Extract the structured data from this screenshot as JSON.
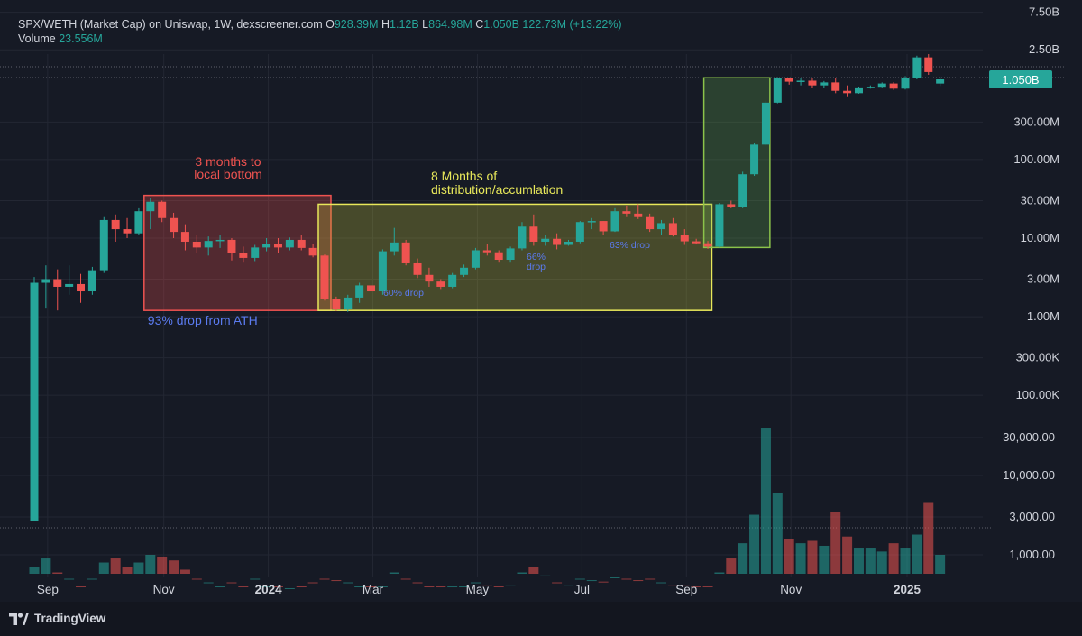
{
  "header": {
    "symbol": "SPX/WETH (Market Cap) on Uniswap, 1W, dexscreener.com",
    "o_label": "O",
    "o_value": "928.39M",
    "h_label": "H",
    "h_value": "1.12B",
    "l_label": "L",
    "l_value": "864.98M",
    "c_label": "C",
    "c_value": "1.050B",
    "change": "122.73M (+13.22%)",
    "volume_label": "Volume",
    "volume_value": "23.556M"
  },
  "footer": {
    "brand": "TradingView"
  },
  "price_badge": "1.050B",
  "colors": {
    "up": "#26a69a",
    "down": "#ef5350",
    "background": "#161a25",
    "grid": "#232733",
    "red_box": "#ef5350",
    "yellow_box": "#e8e85a",
    "green_box": "#8bc34a",
    "annotation_red": "#ef5350",
    "annotation_yellow": "#e8e85a",
    "annotation_blue": "#5b7bf0"
  },
  "chart_data": {
    "type": "candlestick",
    "title": "SPX/WETH (Market Cap) on Uniswap, 1W, dexscreener.com",
    "y_scale": "log",
    "price_axis_labels": [
      "7.50B",
      "2.50B",
      "1.050B",
      "300.00M",
      "100.00M",
      "30.00M",
      "10.00M",
      "3.00M",
      "1.00M",
      "300.00K",
      "100.00K"
    ],
    "volume_axis_labels": [
      "30,000.00",
      "10,000.00",
      "3,000.00",
      "1,000.00"
    ],
    "x_tick_labels": [
      "Sep",
      "Nov",
      "2024",
      "Mar",
      "May",
      "Jul",
      "Sep",
      "Nov",
      "2025"
    ],
    "candles": [
      {
        "o": 0.0025,
        "h": 3.2,
        "l": 0.0025,
        "c": 2.7,
        "v": 700
      },
      {
        "o": 2.7,
        "h": 4.5,
        "l": 1.3,
        "c": 3.0,
        "v": 900
      },
      {
        "o": 3.0,
        "h": 4.0,
        "l": 1.2,
        "c": 2.4,
        "v": 600
      },
      {
        "o": 2.4,
        "h": 4.5,
        "l": 1.9,
        "c": 2.6,
        "v": 500
      },
      {
        "o": 2.6,
        "h": 3.5,
        "l": 1.5,
        "c": 2.1,
        "v": 400
      },
      {
        "o": 2.1,
        "h": 4.3,
        "l": 1.9,
        "c": 3.9,
        "v": 500
      },
      {
        "o": 3.9,
        "h": 19,
        "l": 3.6,
        "c": 17,
        "v": 800
      },
      {
        "o": 17,
        "h": 20,
        "l": 9,
        "c": 13,
        "v": 900
      },
      {
        "o": 13,
        "h": 18,
        "l": 10,
        "c": 11.5,
        "v": 700
      },
      {
        "o": 11.5,
        "h": 24,
        "l": 11,
        "c": 22,
        "v": 800
      },
      {
        "o": 22,
        "h": 32,
        "l": 13,
        "c": 29,
        "v": 1000
      },
      {
        "o": 29,
        "h": 30,
        "l": 16,
        "c": 18,
        "v": 950
      },
      {
        "o": 18,
        "h": 21,
        "l": 10,
        "c": 12,
        "v": 850
      },
      {
        "o": 12,
        "h": 15,
        "l": 7,
        "c": 9,
        "v": 650
      },
      {
        "o": 9,
        "h": 11,
        "l": 6.5,
        "c": 7.6,
        "v": 500
      },
      {
        "o": 7.6,
        "h": 10.5,
        "l": 6,
        "c": 9.2,
        "v": 450
      },
      {
        "o": 9.2,
        "h": 11,
        "l": 7.5,
        "c": 9.5,
        "v": 400
      },
      {
        "o": 9.5,
        "h": 10,
        "l": 5.2,
        "c": 6.5,
        "v": 450
      },
      {
        "o": 6.5,
        "h": 7.8,
        "l": 5,
        "c": 5.6,
        "v": 400
      },
      {
        "o": 5.6,
        "h": 8.2,
        "l": 5.1,
        "c": 7.6,
        "v": 500
      },
      {
        "o": 7.6,
        "h": 10,
        "l": 6.8,
        "c": 8.4,
        "v": 400
      },
      {
        "o": 8.4,
        "h": 10,
        "l": 6.5,
        "c": 7.6,
        "v": 400
      },
      {
        "o": 7.6,
        "h": 10.2,
        "l": 7,
        "c": 9.5,
        "v": 380
      },
      {
        "o": 9.5,
        "h": 11,
        "l": 7,
        "c": 7.5,
        "v": 400
      },
      {
        "o": 7.5,
        "h": 8.5,
        "l": 5.7,
        "c": 6.0,
        "v": 450
      },
      {
        "o": 6.0,
        "h": 6.2,
        "l": 1.6,
        "c": 1.7,
        "v": 500
      },
      {
        "o": 1.7,
        "h": 1.8,
        "l": 1.18,
        "c": 1.25,
        "v": 480
      },
      {
        "o": 1.25,
        "h": 1.9,
        "l": 1.15,
        "c": 1.75,
        "v": 450
      },
      {
        "o": 1.75,
        "h": 2.7,
        "l": 1.5,
        "c": 2.5,
        "v": 400
      },
      {
        "o": 2.5,
        "h": 3.0,
        "l": 2.0,
        "c": 2.1,
        "v": 400
      },
      {
        "o": 2.1,
        "h": 7.2,
        "l": 1.9,
        "c": 6.8,
        "v": 400
      },
      {
        "o": 6.8,
        "h": 13.5,
        "l": 6,
        "c": 8.8,
        "v": 600
      },
      {
        "o": 8.8,
        "h": 9.5,
        "l": 4.5,
        "c": 4.9,
        "v": 500
      },
      {
        "o": 4.9,
        "h": 5.5,
        "l": 3.1,
        "c": 3.4,
        "v": 450
      },
      {
        "o": 3.4,
        "h": 4.2,
        "l": 2.4,
        "c": 2.8,
        "v": 400
      },
      {
        "o": 2.8,
        "h": 3.0,
        "l": 2.25,
        "c": 2.4,
        "v": 400
      },
      {
        "o": 2.4,
        "h": 3.6,
        "l": 2.3,
        "c": 3.4,
        "v": 400
      },
      {
        "o": 3.4,
        "h": 4.6,
        "l": 3.2,
        "c": 4.2,
        "v": 400
      },
      {
        "o": 4.2,
        "h": 7.5,
        "l": 4.0,
        "c": 7.0,
        "v": 450
      },
      {
        "o": 7.0,
        "h": 8.5,
        "l": 6.0,
        "c": 6.6,
        "v": 420
      },
      {
        "o": 6.6,
        "h": 7.0,
        "l": 5.0,
        "c": 5.3,
        "v": 400
      },
      {
        "o": 5.3,
        "h": 7.8,
        "l": 5.0,
        "c": 7.4,
        "v": 420
      },
      {
        "o": 7.4,
        "h": 16,
        "l": 7,
        "c": 14,
        "v": 600
      },
      {
        "o": 14,
        "h": 20,
        "l": 8,
        "c": 9,
        "v": 700
      },
      {
        "o": 9,
        "h": 11,
        "l": 8,
        "c": 9.8,
        "v": 550
      },
      {
        "o": 9.8,
        "h": 11.5,
        "l": 7.2,
        "c": 8.2,
        "v": 450
      },
      {
        "o": 8.2,
        "h": 9.5,
        "l": 8,
        "c": 9.0,
        "v": 420
      },
      {
        "o": 9.0,
        "h": 16.5,
        "l": 8.6,
        "c": 16,
        "v": 500
      },
      {
        "o": 16,
        "h": 18,
        "l": 13,
        "c": 16.5,
        "v": 480
      },
      {
        "o": 16.5,
        "h": 16.5,
        "l": 11,
        "c": 12.2,
        "v": 460
      },
      {
        "o": 12.2,
        "h": 24,
        "l": 12,
        "c": 22,
        "v": 520
      },
      {
        "o": 22,
        "h": 26,
        "l": 19,
        "c": 20.5,
        "v": 500
      },
      {
        "o": 20.5,
        "h": 27,
        "l": 17.5,
        "c": 19,
        "v": 480
      },
      {
        "o": 19,
        "h": 20.5,
        "l": 12,
        "c": 13,
        "v": 500
      },
      {
        "o": 13,
        "h": 17,
        "l": 11,
        "c": 15.5,
        "v": 450
      },
      {
        "o": 15.5,
        "h": 18,
        "l": 10.5,
        "c": 11,
        "v": 420
      },
      {
        "o": 11,
        "h": 13,
        "l": 8.2,
        "c": 9.1,
        "v": 420
      },
      {
        "o": 9.1,
        "h": 9.8,
        "l": 8.3,
        "c": 8.6,
        "v": 400
      },
      {
        "o": 8.6,
        "h": 9.2,
        "l": 7.3,
        "c": 7.8,
        "v": 400
      },
      {
        "o": 7.8,
        "h": 28,
        "l": 7.6,
        "c": 27,
        "v": 600
      },
      {
        "o": 27,
        "h": 30,
        "l": 24,
        "c": 25,
        "v": 900
      },
      {
        "o": 25,
        "h": 70,
        "l": 24,
        "c": 65,
        "v": 1400
      },
      {
        "o": 65,
        "h": 165,
        "l": 62,
        "c": 155,
        "v": 3200
      },
      {
        "o": 155,
        "h": 560,
        "l": 150,
        "c": 530,
        "v": 40000
      },
      {
        "o": 530,
        "h": 1120,
        "l": 520,
        "c": 1080,
        "v": 6000
      },
      {
        "o": 1080,
        "h": 1110,
        "l": 900,
        "c": 980,
        "v": 1600
      },
      {
        "o": 980,
        "h": 1080,
        "l": 880,
        "c": 1010,
        "v": 1400
      },
      {
        "o": 1010,
        "h": 1100,
        "l": 820,
        "c": 880,
        "v": 1500
      },
      {
        "o": 880,
        "h": 1000,
        "l": 820,
        "c": 960,
        "v": 1300
      },
      {
        "o": 960,
        "h": 1080,
        "l": 700,
        "c": 750,
        "v": 3500
      },
      {
        "o": 750,
        "h": 880,
        "l": 640,
        "c": 700,
        "v": 1700
      },
      {
        "o": 700,
        "h": 850,
        "l": 690,
        "c": 830,
        "v": 1200
      },
      {
        "o": 830,
        "h": 880,
        "l": 800,
        "c": 845,
        "v": 1200
      },
      {
        "o": 845,
        "h": 960,
        "l": 830,
        "c": 930,
        "v": 1100
      },
      {
        "o": 930,
        "h": 970,
        "l": 770,
        "c": 800,
        "v": 1400
      },
      {
        "o": 800,
        "h": 1150,
        "l": 780,
        "c": 1100,
        "v": 1200
      },
      {
        "o": 1100,
        "h": 2100,
        "l": 1050,
        "c": 2000,
        "v": 1800
      },
      {
        "o": 2000,
        "h": 2200,
        "l": 1200,
        "c": 1300,
        "v": 4500
      },
      {
        "o": 928.39,
        "h": 1120,
        "l": 864.98,
        "c": 1050,
        "v": 1000
      }
    ]
  },
  "annotations": {
    "red_box_text_line1": "3 months to",
    "red_box_text_line2": "local bottom",
    "red_box_bottom_text": "93% drop from ATH",
    "yellow_box_text_line1": "8 Months of",
    "yellow_box_text_line2": "distribution/accumlation",
    "drop1": "60% drop",
    "drop2_line1": "66%",
    "drop2_line2": "drop",
    "drop3": "63% drop"
  }
}
